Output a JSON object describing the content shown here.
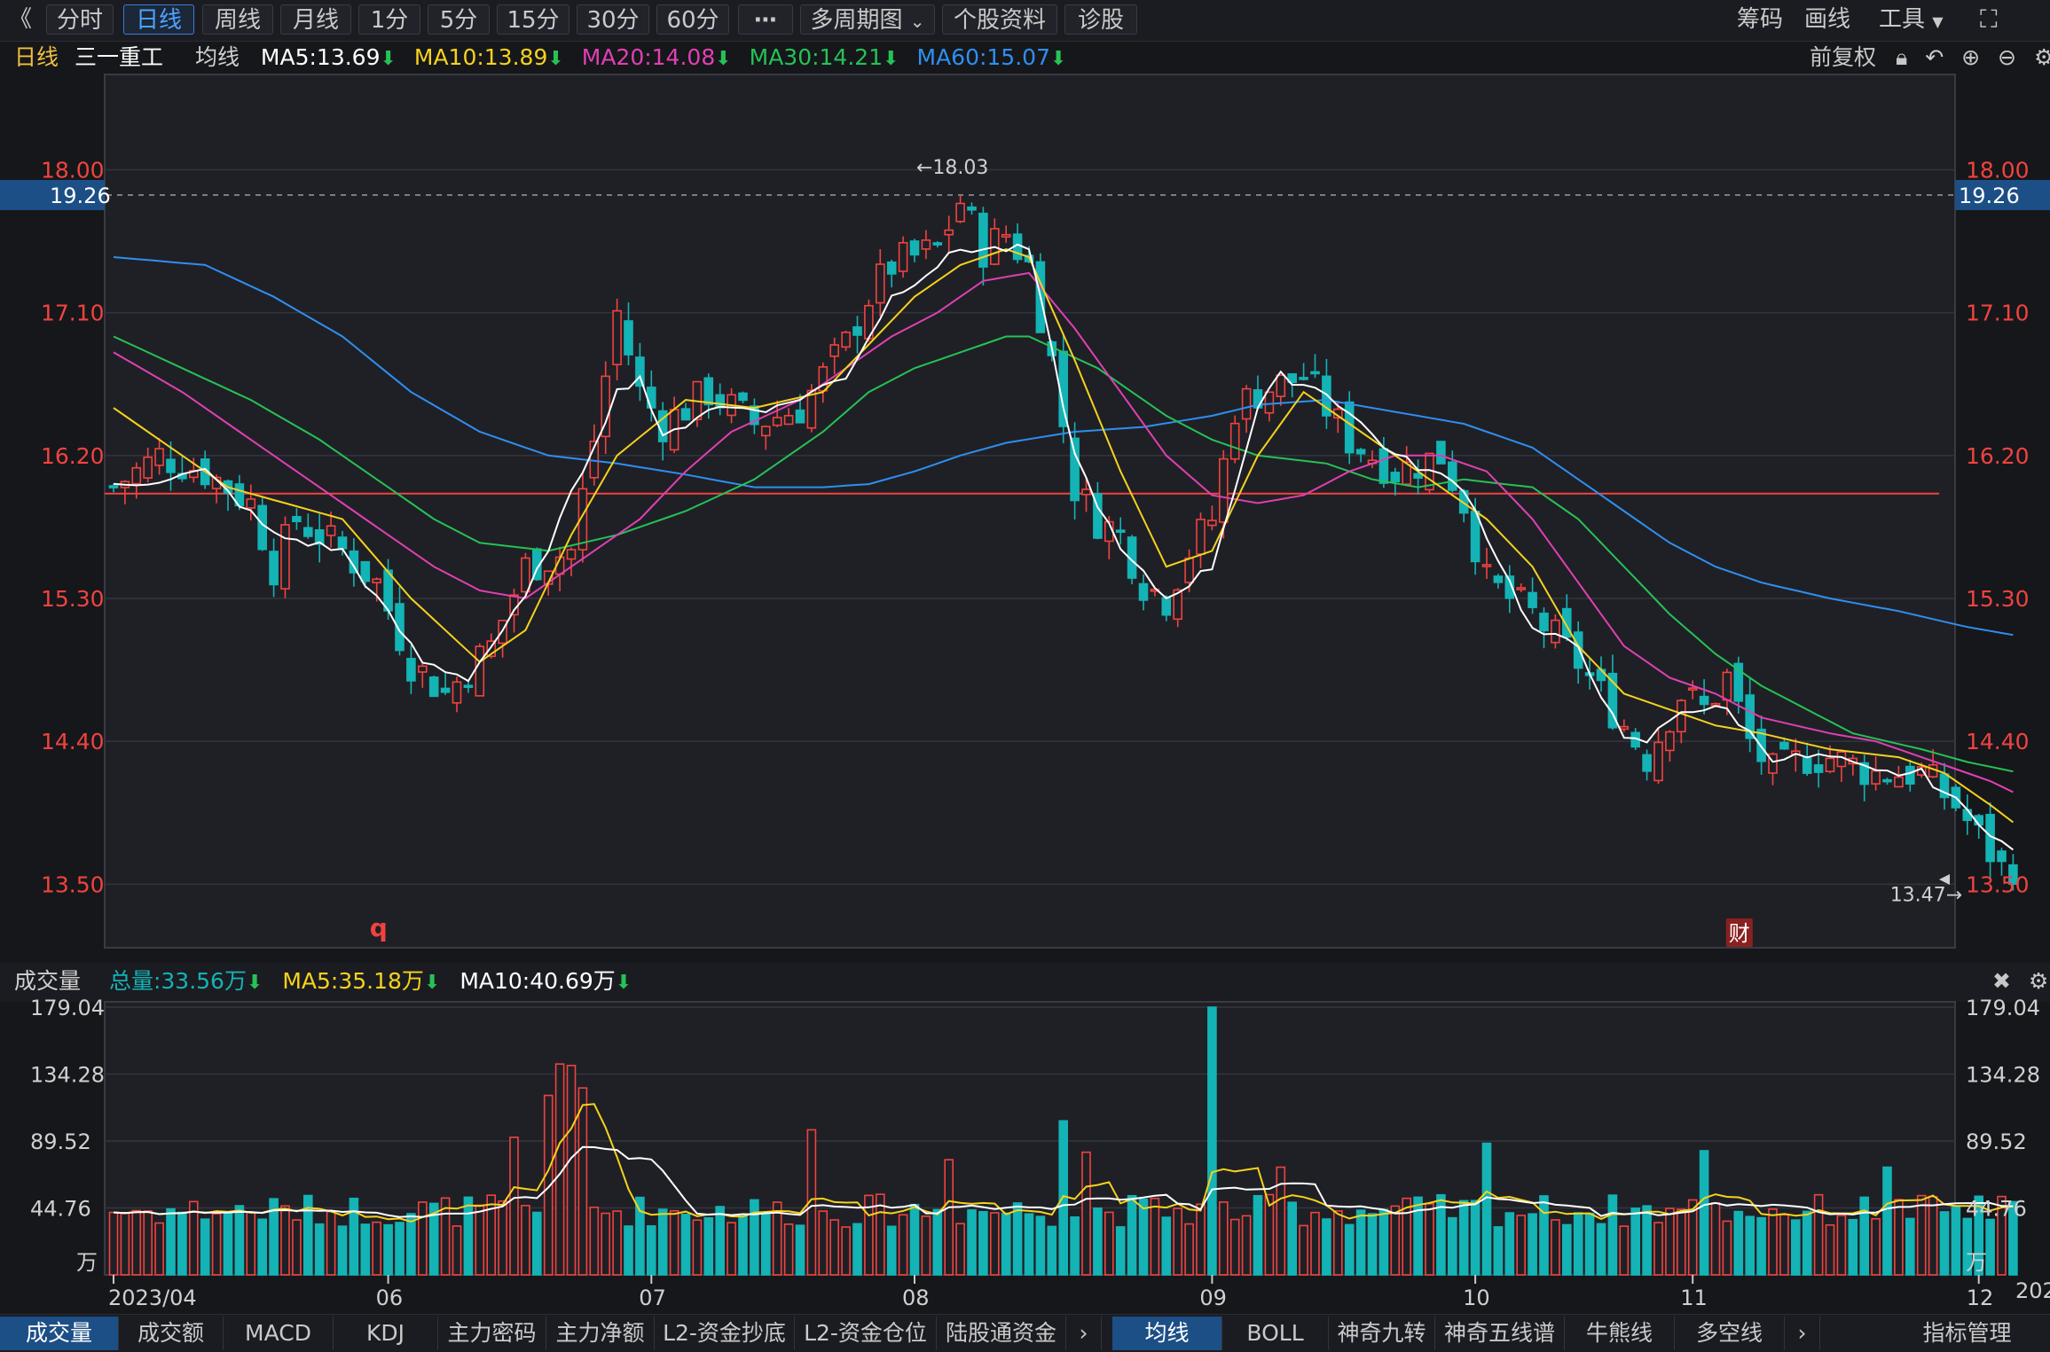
{
  "toolbar": {
    "back_icon": "double-chevron-left-icon",
    "periods": [
      "分时",
      "日线",
      "周线",
      "月线",
      "1分",
      "5分",
      "15分",
      "30分",
      "60分"
    ],
    "active_period": "日线",
    "more": "⋯",
    "multi_period": "多周期图",
    "stock_info": "个股资料",
    "diagnose": "诊股",
    "chip": "筹码",
    "draw": "画线",
    "tools": "工具",
    "fullscreen_icon": "fullscreen-icon"
  },
  "price_legend": {
    "period": "日线",
    "stock_name": "三一重工",
    "ma_label": "均线",
    "ma5": "MA5:13.69",
    "ma10": "MA10:13.89",
    "ma20": "MA20:14.08",
    "ma30": "MA30:14.21",
    "ma60": "MA60:15.07",
    "adjust": "前复权",
    "lock_icon": "lock-icon",
    "undo_icon": "undo-icon",
    "zoom_in_icon": "zoom-in-icon",
    "zoom_out_icon": "zoom-out-icon",
    "settings_icon": "gear-icon"
  },
  "volume_legend": {
    "title": "成交量",
    "total": "总量:33.56万",
    "ma5": "MA5:35.18万",
    "ma10": "MA10:40.69万",
    "close_icon": "close-icon",
    "settings_icon": "gear-icon"
  },
  "colors": {
    "up": "#f0433f",
    "down": "#14b3b5",
    "ma5": "#ffffff",
    "ma10": "#f5d21d",
    "ma20": "#e040b3",
    "ma30": "#26c255",
    "ma60": "#2f8ff0",
    "background": "#16171b",
    "crosshair": "#f0433f"
  },
  "chart_data": [
    {
      "type": "candlestick",
      "title": "三一重工",
      "y_ticks": [
        "18.00",
        "17.10",
        "16.20",
        "15.30",
        "14.40",
        "13.50"
      ],
      "ylim": [
        13.1,
        18.6
      ],
      "crosshair_label": "19.26",
      "reference_line": 15.96,
      "high_annotation": "←18.03",
      "low_annotation": "13.47→",
      "markers": [
        {
          "label": "q",
          "day": 23
        },
        {
          "label": "财",
          "day": 142
        }
      ],
      "x_labels": [
        {
          "day": 0,
          "label": "2023/04"
        },
        {
          "day": 24,
          "label": "06"
        },
        {
          "day": 47,
          "label": "07"
        },
        {
          "day": 70,
          "label": "08"
        },
        {
          "day": 96,
          "label": "09"
        },
        {
          "day": 119,
          "label": "10"
        },
        {
          "day": 138,
          "label": "11"
        },
        {
          "day": 163,
          "label": "12"
        }
      ],
      "anchors": [
        [
          0,
          16.0
        ],
        [
          4,
          16.2
        ],
        [
          8,
          16.1
        ],
        [
          12,
          15.9
        ],
        [
          14,
          15.5
        ],
        [
          16,
          15.8
        ],
        [
          20,
          15.6
        ],
        [
          23,
          15.4
        ],
        [
          26,
          14.9
        ],
        [
          29,
          14.7
        ],
        [
          33,
          15.0
        ],
        [
          36,
          15.5
        ],
        [
          40,
          15.6
        ],
        [
          42,
          16.3
        ],
        [
          44,
          17.1
        ],
        [
          46,
          16.6
        ],
        [
          48,
          16.4
        ],
        [
          52,
          16.6
        ],
        [
          56,
          16.4
        ],
        [
          60,
          16.5
        ],
        [
          64,
          16.9
        ],
        [
          66,
          17.2
        ],
        [
          68,
          17.4
        ],
        [
          72,
          17.5
        ],
        [
          74,
          17.8
        ],
        [
          76,
          17.5
        ],
        [
          78,
          17.6
        ],
        [
          80,
          17.4
        ],
        [
          82,
          16.8
        ],
        [
          84,
          16.0
        ],
        [
          86,
          15.8
        ],
        [
          88,
          15.7
        ],
        [
          90,
          15.4
        ],
        [
          92,
          15.3
        ],
        [
          94,
          15.6
        ],
        [
          96,
          15.8
        ],
        [
          98,
          16.5
        ],
        [
          100,
          16.6
        ],
        [
          104,
          16.7
        ],
        [
          108,
          16.3
        ],
        [
          112,
          16.1
        ],
        [
          116,
          16.2
        ],
        [
          118,
          15.9
        ],
        [
          120,
          15.4
        ],
        [
          124,
          15.2
        ],
        [
          128,
          14.9
        ],
        [
          132,
          14.5
        ],
        [
          134,
          14.3
        ],
        [
          137,
          14.7
        ],
        [
          139,
          14.6
        ],
        [
          141,
          14.8
        ],
        [
          143,
          14.4
        ],
        [
          145,
          14.2
        ],
        [
          148,
          14.3
        ],
        [
          150,
          14.3
        ],
        [
          154,
          14.2
        ],
        [
          158,
          14.2
        ],
        [
          161,
          14.0
        ],
        [
          163,
          13.8
        ],
        [
          165,
          13.6
        ],
        [
          166,
          13.62
        ]
      ],
      "ma_anchors": {
        "ma5": [
          [
            0,
            16.0
          ],
          [
            8,
            16.1
          ],
          [
            14,
            15.7
          ],
          [
            20,
            15.6
          ],
          [
            27,
            14.9
          ],
          [
            31,
            14.8
          ],
          [
            36,
            15.3
          ],
          [
            44,
            16.6
          ],
          [
            46,
            16.7
          ],
          [
            48,
            16.3
          ],
          [
            52,
            16.5
          ],
          [
            58,
            16.5
          ],
          [
            64,
            16.7
          ],
          [
            68,
            17.2
          ],
          [
            74,
            17.5
          ],
          [
            76,
            17.5
          ],
          [
            80,
            17.5
          ],
          [
            84,
            16.2
          ],
          [
            88,
            15.6
          ],
          [
            92,
            15.3
          ],
          [
            96,
            15.5
          ],
          [
            100,
            16.5
          ],
          [
            102,
            16.7
          ],
          [
            106,
            16.6
          ],
          [
            112,
            16.2
          ],
          [
            118,
            16.0
          ],
          [
            124,
            15.1
          ],
          [
            128,
            15.0
          ],
          [
            132,
            14.4
          ],
          [
            134,
            14.4
          ],
          [
            137,
            14.6
          ],
          [
            141,
            14.6
          ],
          [
            145,
            14.3
          ],
          [
            150,
            14.3
          ],
          [
            154,
            14.2
          ],
          [
            158,
            14.2
          ],
          [
            163,
            13.9
          ],
          [
            166,
            13.7
          ]
        ],
        "ma10": [
          [
            0,
            16.5
          ],
          [
            4,
            16.3
          ],
          [
            10,
            16.0
          ],
          [
            20,
            15.8
          ],
          [
            26,
            15.3
          ],
          [
            32,
            14.9
          ],
          [
            36,
            15.1
          ],
          [
            40,
            15.7
          ],
          [
            44,
            16.2
          ],
          [
            50,
            16.55
          ],
          [
            56,
            16.5
          ],
          [
            62,
            16.6
          ],
          [
            66,
            16.9
          ],
          [
            70,
            17.2
          ],
          [
            74,
            17.4
          ],
          [
            78,
            17.5
          ],
          [
            80,
            17.45
          ],
          [
            84,
            16.8
          ],
          [
            88,
            16.1
          ],
          [
            92,
            15.5
          ],
          [
            96,
            15.6
          ],
          [
            100,
            16.2
          ],
          [
            104,
            16.6
          ],
          [
            108,
            16.4
          ],
          [
            112,
            16.2
          ],
          [
            116,
            16.0
          ],
          [
            120,
            15.8
          ],
          [
            124,
            15.5
          ],
          [
            128,
            15.0
          ],
          [
            132,
            14.7
          ],
          [
            136,
            14.6
          ],
          [
            140,
            14.5
          ],
          [
            144,
            14.45
          ],
          [
            150,
            14.35
          ],
          [
            156,
            14.3
          ],
          [
            160,
            14.2
          ],
          [
            164,
            14.0
          ],
          [
            166,
            13.89
          ]
        ],
        "ma20": [
          [
            0,
            16.85
          ],
          [
            6,
            16.6
          ],
          [
            10,
            16.4
          ],
          [
            16,
            16.1
          ],
          [
            22,
            15.8
          ],
          [
            28,
            15.5
          ],
          [
            32,
            15.35
          ],
          [
            36,
            15.3
          ],
          [
            40,
            15.5
          ],
          [
            46,
            15.8
          ],
          [
            50,
            16.1
          ],
          [
            54,
            16.35
          ],
          [
            60,
            16.55
          ],
          [
            64,
            16.75
          ],
          [
            68,
            16.95
          ],
          [
            72,
            17.1
          ],
          [
            76,
            17.3
          ],
          [
            80,
            17.35
          ],
          [
            84,
            17.0
          ],
          [
            88,
            16.6
          ],
          [
            92,
            16.2
          ],
          [
            96,
            15.95
          ],
          [
            100,
            15.9
          ],
          [
            104,
            15.95
          ],
          [
            108,
            16.1
          ],
          [
            112,
            16.2
          ],
          [
            116,
            16.2
          ],
          [
            120,
            16.1
          ],
          [
            124,
            15.8
          ],
          [
            128,
            15.4
          ],
          [
            132,
            15.0
          ],
          [
            136,
            14.8
          ],
          [
            140,
            14.7
          ],
          [
            144,
            14.55
          ],
          [
            150,
            14.45
          ],
          [
            154,
            14.4
          ],
          [
            160,
            14.25
          ],
          [
            164,
            14.15
          ],
          [
            166,
            14.08
          ]
        ],
        "ma30": [
          [
            0,
            16.95
          ],
          [
            6,
            16.75
          ],
          [
            12,
            16.55
          ],
          [
            18,
            16.3
          ],
          [
            24,
            16.0
          ],
          [
            28,
            15.8
          ],
          [
            32,
            15.65
          ],
          [
            38,
            15.6
          ],
          [
            44,
            15.7
          ],
          [
            50,
            15.85
          ],
          [
            56,
            16.05
          ],
          [
            62,
            16.35
          ],
          [
            66,
            16.6
          ],
          [
            70,
            16.75
          ],
          [
            74,
            16.85
          ],
          [
            78,
            16.95
          ],
          [
            80,
            16.95
          ],
          [
            86,
            16.75
          ],
          [
            92,
            16.45
          ],
          [
            96,
            16.3
          ],
          [
            100,
            16.2
          ],
          [
            106,
            16.15
          ],
          [
            110,
            16.05
          ],
          [
            114,
            16.0
          ],
          [
            118,
            16.05
          ],
          [
            124,
            16.0
          ],
          [
            128,
            15.8
          ],
          [
            132,
            15.5
          ],
          [
            136,
            15.2
          ],
          [
            140,
            14.95
          ],
          [
            144,
            14.75
          ],
          [
            148,
            14.6
          ],
          [
            152,
            14.45
          ],
          [
            158,
            14.35
          ],
          [
            162,
            14.27
          ],
          [
            166,
            14.21
          ]
        ],
        "ma60": [
          [
            0,
            17.45
          ],
          [
            8,
            17.4
          ],
          [
            14,
            17.2
          ],
          [
            20,
            16.95
          ],
          [
            26,
            16.6
          ],
          [
            32,
            16.35
          ],
          [
            38,
            16.2
          ],
          [
            44,
            16.15
          ],
          [
            50,
            16.08
          ],
          [
            56,
            16.0
          ],
          [
            62,
            16.0
          ],
          [
            66,
            16.02
          ],
          [
            70,
            16.1
          ],
          [
            74,
            16.2
          ],
          [
            78,
            16.28
          ],
          [
            84,
            16.35
          ],
          [
            90,
            16.38
          ],
          [
            96,
            16.45
          ],
          [
            100,
            16.52
          ],
          [
            106,
            16.55
          ],
          [
            110,
            16.5
          ],
          [
            114,
            16.45
          ],
          [
            118,
            16.4
          ],
          [
            124,
            16.25
          ],
          [
            128,
            16.05
          ],
          [
            132,
            15.85
          ],
          [
            136,
            15.65
          ],
          [
            140,
            15.5
          ],
          [
            144,
            15.4
          ],
          [
            150,
            15.3
          ],
          [
            156,
            15.22
          ],
          [
            162,
            15.12
          ],
          [
            166,
            15.07
          ]
        ]
      }
    },
    {
      "type": "bar",
      "title": "成交量",
      "unit": "万",
      "y_ticks": [
        "179.04",
        "134.28",
        "89.52",
        "44.76"
      ],
      "ylim": [
        0,
        179.04
      ],
      "spikes": [
        {
          "day": 35,
          "value": 92
        },
        {
          "day": 38,
          "value": 120
        },
        {
          "day": 39,
          "value": 141
        },
        {
          "day": 40,
          "value": 140
        },
        {
          "day": 41,
          "value": 125
        },
        {
          "day": 61,
          "value": 97
        },
        {
          "day": 73,
          "value": 77
        },
        {
          "day": 83,
          "value": 103
        },
        {
          "day": 85,
          "value": 82
        },
        {
          "day": 96,
          "value": 179
        },
        {
          "day": 102,
          "value": 72
        },
        {
          "day": 120,
          "value": 88
        },
        {
          "day": 139,
          "value": 83
        },
        {
          "day": 155,
          "value": 72
        }
      ]
    }
  ],
  "tabs_left": [
    "成交量",
    "成交额",
    "MACD",
    "KDJ",
    "主力密码",
    "主力净额",
    "L2-资金抄底",
    "L2-资金仓位",
    "陆股通资金"
  ],
  "tabs_right": [
    "均线",
    "BOLL",
    "神奇九转",
    "神奇五线谱",
    "牛熊线",
    "多空线"
  ],
  "tabs_more_icon": "chevron-right-icon",
  "indicator_manage": "指标管理",
  "corner_year": "202"
}
